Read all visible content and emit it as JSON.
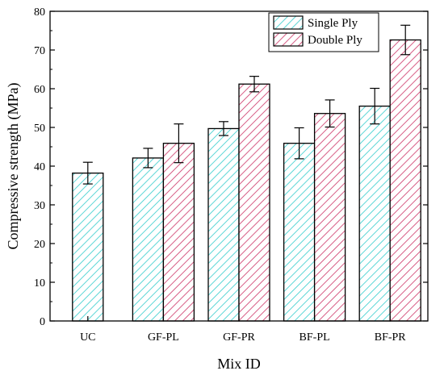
{
  "chart_data": {
    "type": "bar",
    "categories": [
      "UC",
      "GF-PL",
      "GF-PR",
      "BF-PL",
      "BF-PR"
    ],
    "series": [
      {
        "name": "Single Ply",
        "color": "#33cccc",
        "pattern": "diagonal-hatch",
        "values": [
          38.2,
          42.1,
          49.7,
          45.9,
          55.5
        ],
        "errors": [
          2.8,
          2.5,
          1.8,
          4.0,
          4.6
        ]
      },
      {
        "name": "Double Ply",
        "color": "#cc3366",
        "pattern": "diagonal-hatch",
        "values": [
          null,
          45.9,
          61.2,
          53.6,
          72.6
        ],
        "errors": [
          null,
          5.0,
          2.0,
          3.5,
          3.8
        ]
      }
    ],
    "xlabel": "Mix ID",
    "ylabel": "Compressive strength (MPa)",
    "ylim": [
      0,
      80
    ],
    "yticks": [
      "0",
      "10",
      "20",
      "30",
      "40",
      "50",
      "60",
      "70",
      "80"
    ],
    "legend_position": "top-right",
    "grid": false
  }
}
